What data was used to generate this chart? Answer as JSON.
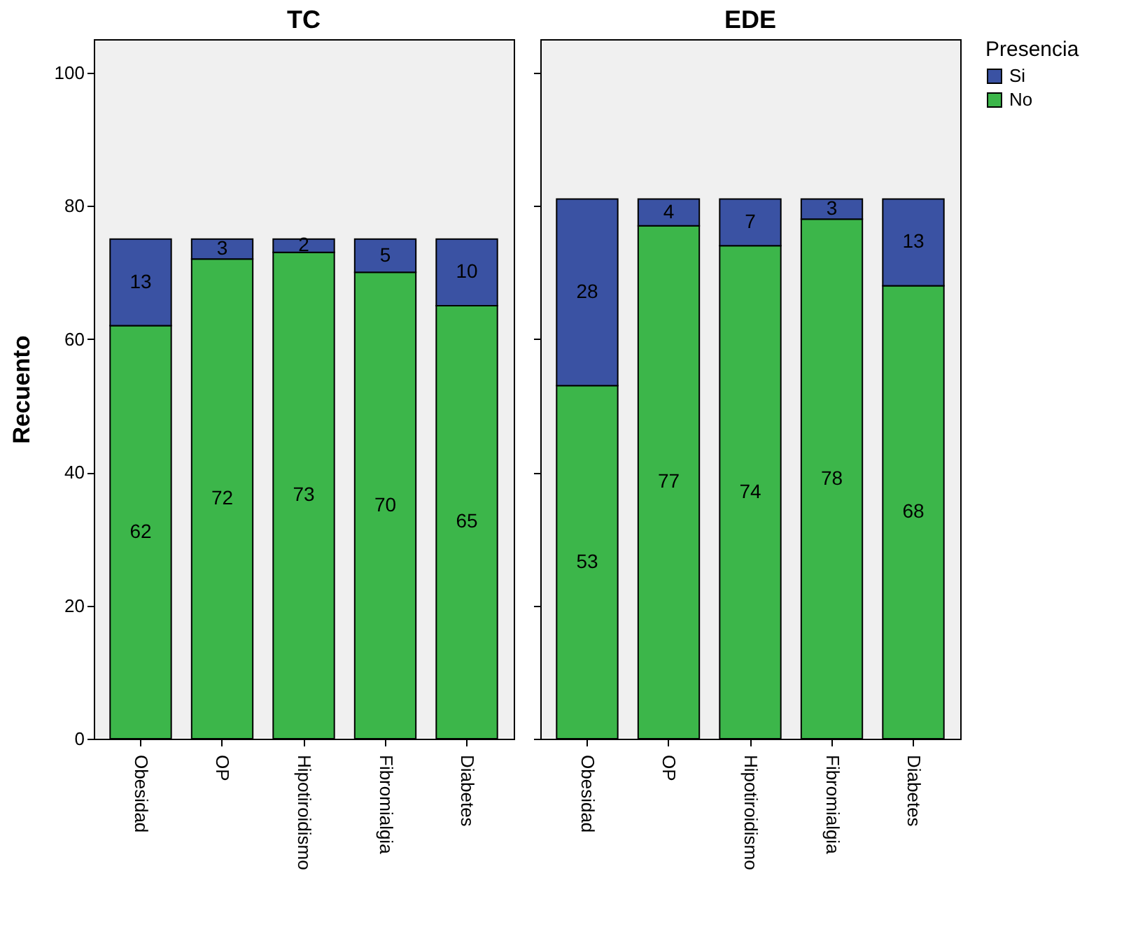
{
  "chart_data": [
    {
      "type": "bar",
      "title": "TC",
      "ylabel": "Recuento",
      "stacked": true,
      "categories": [
        "Obesidad",
        "OP",
        "Hipotiroidismo",
        "Fibromialgia",
        "Diabetes"
      ],
      "series": [
        {
          "color": "#3cb64a",
          "values": [
            62,
            72,
            73,
            70,
            65
          ]
        },
        {
          "color": "#3a52a3",
          "values": [
            13,
            3,
            2,
            5,
            10
          ]
        }
      ],
      "ylim": [
        0,
        105
      ],
      "yticks": [
        0,
        20,
        40,
        60,
        80,
        100
      ],
      "data_labels": true,
      "grid": false,
      "legend": false
    },
    {
      "type": "bar",
      "title": "EDE",
      "stacked": true,
      "categories": [
        "Obesidad",
        "OP",
        "Hipotiroidismo",
        "Fibromialgia",
        "Diabetes"
      ],
      "series": [
        {
          "name": "No",
          "color": "#3cb64a",
          "values": [
            53,
            77,
            74,
            78,
            68
          ]
        },
        {
          "name": "Si",
          "color": "#3a52a3",
          "values": [
            28,
            4,
            7,
            3,
            13
          ]
        }
      ],
      "ylim": [
        0,
        105
      ],
      "yticks": [
        0,
        20,
        40,
        60,
        80,
        100
      ],
      "data_labels": true,
      "grid": false,
      "legend": "right",
      "legend_title": "Presencia",
      "tick_labels": "x"
    }
  ]
}
